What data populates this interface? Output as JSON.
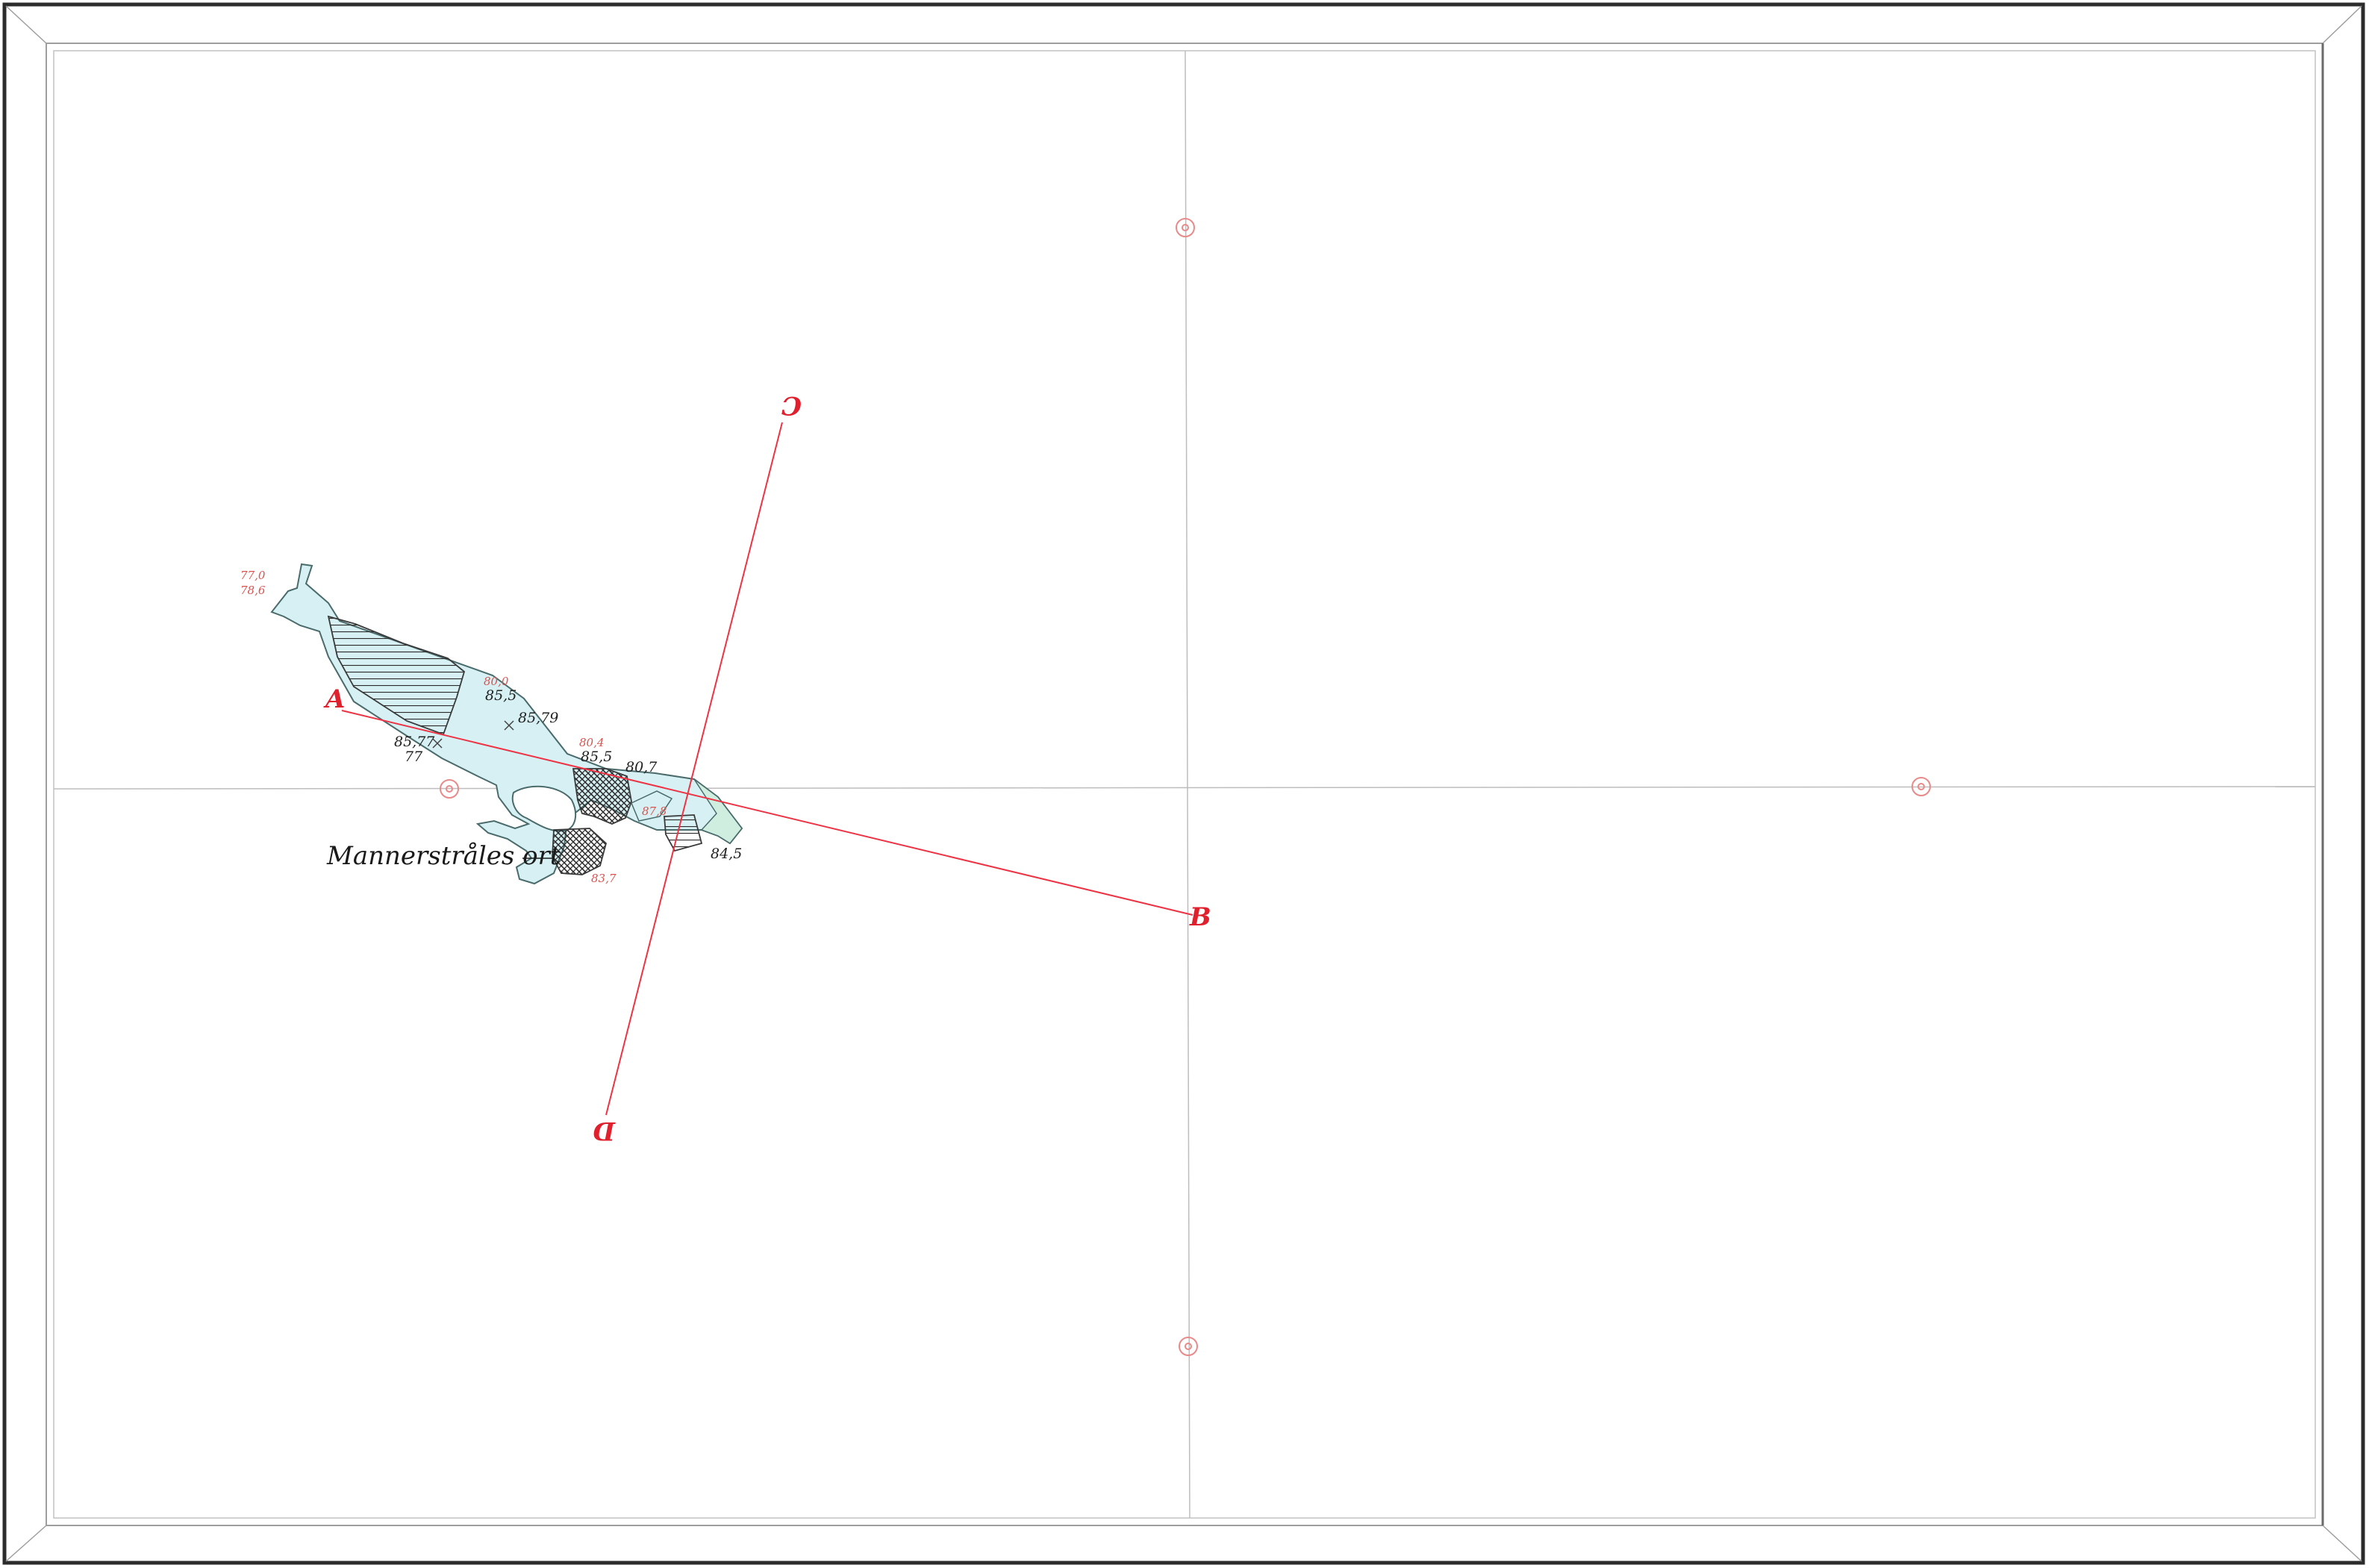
{
  "map": {
    "place_name": "Mannerstråles ort",
    "section_lines": {
      "ab": {
        "start_label": "A",
        "end_label": "B"
      },
      "cd": {
        "start_label": "C",
        "end_label": "D"
      }
    },
    "elevations": {
      "e1_top": "77,0",
      "e1_bottom": "78,6",
      "e2_top": "80,0",
      "e2_bottom": "85,5",
      "e3": "85,79",
      "e4_top": "80,4",
      "e4_bottom": "85,5",
      "e5": "80,7",
      "e6_top": "85,77",
      "e6_bottom": "77",
      "e7": "87,8",
      "e8": "84,5",
      "e9": "83,7"
    },
    "colors": {
      "frame": "#2b2b2b",
      "grid": "#bdbdbd",
      "section_line": "#ee3344",
      "mine_fill": "#d6f0f3",
      "mine_edge_fill": "#cfeee0",
      "hatch": "#2a2a2a"
    }
  }
}
